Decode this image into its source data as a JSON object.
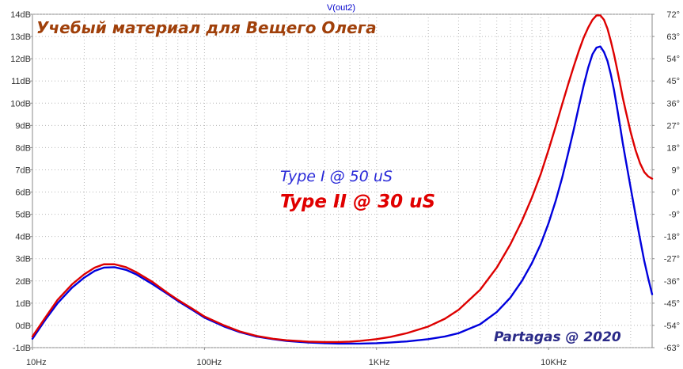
{
  "chart_data": {
    "type": "line",
    "trace_title": "V(out2)",
    "x_axis": {
      "scale": "log",
      "range": [
        10,
        40000
      ],
      "tick_values": [
        10,
        100,
        1000,
        10000
      ],
      "tick_labels": [
        "10Hz",
        "100Hz",
        "1KHz",
        "10KHz"
      ]
    },
    "y_left": {
      "unit": "dB",
      "range": [
        -1,
        14
      ],
      "tick_values": [
        -1,
        0,
        1,
        2,
        3,
        4,
        5,
        6,
        7,
        8,
        9,
        10,
        11,
        12,
        13,
        14
      ],
      "tick_labels": [
        "-1dB",
        "0dB",
        "1dB",
        "2dB",
        "3dB",
        "4dB",
        "5dB",
        "6dB",
        "7dB",
        "8dB",
        "9dB",
        "10dB",
        "11dB",
        "12dB",
        "13dB",
        "14dB"
      ]
    },
    "y_right": {
      "unit": "degrees",
      "range": [
        -63,
        72
      ],
      "tick_values": [
        -63,
        -54,
        -45,
        -36,
        -27,
        -18,
        -9,
        0,
        9,
        18,
        27,
        36,
        45,
        54,
        63,
        72
      ],
      "tick_labels": [
        "-63°",
        "-54°",
        "-45°",
        "-36°",
        "-27°",
        "-18°",
        "-9°",
        "0°",
        "9°",
        "18°",
        "27°",
        "36°",
        "45°",
        "54°",
        "63°",
        "72°"
      ]
    },
    "grid": true,
    "series": [
      {
        "name": "Type I @ 50 uS",
        "color": "#0000dd",
        "x": [
          10,
          12,
          14,
          17,
          20,
          23,
          26,
          30,
          35,
          40,
          50,
          60,
          70,
          85,
          100,
          130,
          160,
          200,
          250,
          300,
          400,
          500,
          600,
          700,
          800,
          1000,
          1200,
          1500,
          2000,
          2500,
          3000,
          4000,
          5000,
          6000,
          7000,
          8000,
          9000,
          10000,
          11000,
          12000,
          13000,
          14000,
          15000,
          16000,
          17000,
          18000,
          19000,
          20000,
          21000,
          22000,
          23000,
          24000,
          25000,
          26000,
          27000,
          28000,
          30000,
          32000,
          34000,
          36000,
          38000,
          40000
        ],
        "y": [
          -0.6,
          0.3,
          1.0,
          1.7,
          2.15,
          2.45,
          2.6,
          2.62,
          2.5,
          2.3,
          1.85,
          1.45,
          1.1,
          0.7,
          0.35,
          -0.05,
          -0.3,
          -0.5,
          -0.62,
          -0.7,
          -0.77,
          -0.8,
          -0.82,
          -0.82,
          -0.82,
          -0.8,
          -0.77,
          -0.72,
          -0.62,
          -0.5,
          -0.35,
          0.05,
          0.6,
          1.25,
          2.0,
          2.8,
          3.65,
          4.6,
          5.6,
          6.65,
          7.75,
          8.8,
          9.85,
          10.8,
          11.6,
          12.2,
          12.5,
          12.55,
          12.3,
          11.9,
          11.3,
          10.6,
          9.8,
          9.0,
          8.2,
          7.5,
          6.2,
          5.0,
          3.9,
          2.9,
          2.1,
          1.4
        ]
      },
      {
        "name": "Type II @ 30 uS",
        "color": "#dd0000",
        "x": [
          10,
          12,
          14,
          17,
          20,
          23,
          26,
          30,
          35,
          40,
          50,
          60,
          70,
          85,
          100,
          130,
          160,
          200,
          250,
          300,
          400,
          500,
          600,
          700,
          800,
          1000,
          1200,
          1500,
          2000,
          2500,
          3000,
          4000,
          5000,
          6000,
          7000,
          8000,
          9000,
          10000,
          11000,
          12000,
          13000,
          14000,
          15000,
          16000,
          17000,
          18000,
          19000,
          20000,
          21000,
          22000,
          23000,
          24000,
          25000,
          26000,
          27000,
          28000,
          30000,
          32000,
          34000,
          36000,
          38000,
          40000
        ],
        "y": [
          -0.5,
          0.4,
          1.15,
          1.85,
          2.3,
          2.6,
          2.75,
          2.75,
          2.62,
          2.4,
          1.95,
          1.5,
          1.15,
          0.75,
          0.4,
          0.0,
          -0.27,
          -0.47,
          -0.6,
          -0.67,
          -0.73,
          -0.75,
          -0.75,
          -0.73,
          -0.7,
          -0.62,
          -0.52,
          -0.35,
          -0.05,
          0.3,
          0.7,
          1.6,
          2.6,
          3.65,
          4.7,
          5.75,
          6.8,
          7.9,
          8.95,
          9.95,
          10.85,
          11.65,
          12.35,
          12.95,
          13.4,
          13.75,
          13.95,
          13.95,
          13.75,
          13.35,
          12.8,
          12.2,
          11.55,
          10.9,
          10.25,
          9.7,
          8.7,
          7.9,
          7.3,
          6.9,
          6.7,
          6.6
        ]
      }
    ]
  },
  "annotations": {
    "title": "Учебый материал для Вещего Олега",
    "type1": "Type I @ 50 uS",
    "type2": "Type II @ 30 uS",
    "author": "Partagas @ 2020"
  }
}
